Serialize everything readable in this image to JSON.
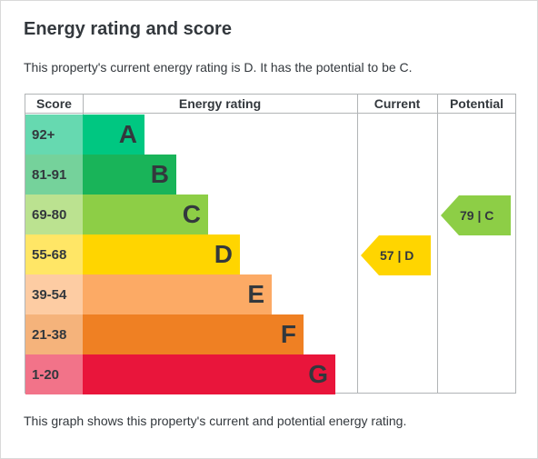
{
  "title": "Energy rating and score",
  "intro": "This property's current energy rating is D. It has the potential to be C.",
  "footer": "This graph shows this property's current and potential energy rating.",
  "headers": {
    "score": "Score",
    "rating": "Energy rating",
    "current": "Current",
    "potential": "Potential"
  },
  "bands": [
    {
      "score": "92+",
      "letter": "A",
      "bar_color": "#00c781",
      "score_bg": "#66d9b0"
    },
    {
      "score": "81-91",
      "letter": "B",
      "bar_color": "#19b459",
      "score_bg": "#75d29b"
    },
    {
      "score": "69-80",
      "letter": "C",
      "bar_color": "#8dce46",
      "score_bg": "#bbe290"
    },
    {
      "score": "55-68",
      "letter": "D",
      "bar_color": "#ffd500",
      "score_bg": "#ffe666"
    },
    {
      "score": "39-54",
      "letter": "E",
      "bar_color": "#fcaa65",
      "score_bg": "#fdcca3"
    },
    {
      "score": "21-38",
      "letter": "F",
      "bar_color": "#ef8023",
      "score_bg": "#f5b37b"
    },
    {
      "score": "1-20",
      "letter": "G",
      "bar_color": "#e9153b",
      "score_bg": "#f27389"
    }
  ],
  "current": {
    "label": "57 | D",
    "score": 57,
    "band": "D",
    "color": "#ffd500"
  },
  "potential": {
    "label": "79 | C",
    "score": 79,
    "band": "C",
    "color": "#8dce46"
  }
}
